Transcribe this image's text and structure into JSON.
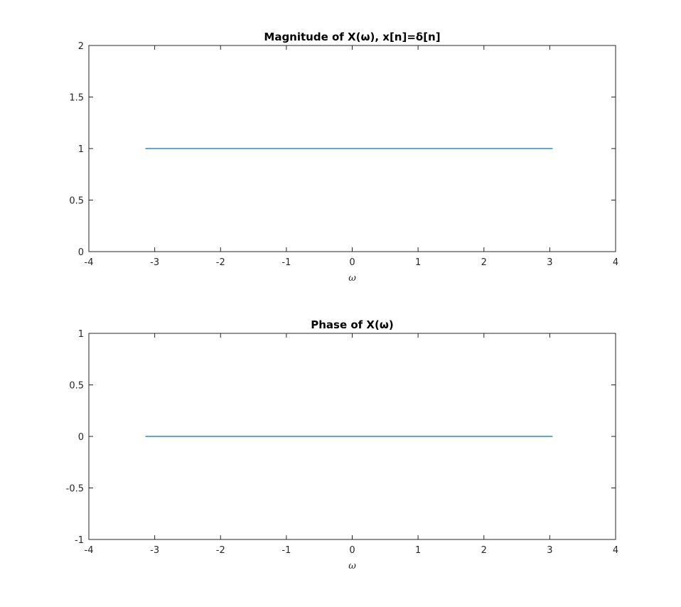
{
  "chart_data": [
    {
      "type": "line",
      "title": "Magnitude of X(ω), x[n]=δ[n]",
      "xlabel": "ω",
      "ylabel": "",
      "xlim": [
        -4,
        4
      ],
      "ylim": [
        0,
        2
      ],
      "xticks": [
        -4,
        -3,
        -2,
        -1,
        0,
        1,
        2,
        3,
        4
      ],
      "yticks": [
        0,
        0.5,
        1,
        1.5,
        2
      ],
      "xtick_labels": [
        "-4",
        "-3",
        "-2",
        "-1",
        "0",
        "1",
        "2",
        "3",
        "4"
      ],
      "ytick_labels": [
        "0",
        "0.5",
        "1",
        "1.5",
        "2"
      ],
      "grid": false,
      "series": [
        {
          "x": [
            -3.1416,
            3.0434
          ],
          "y": [
            1,
            1
          ],
          "color": "#0072bd"
        }
      ]
    },
    {
      "type": "line",
      "title": "Phase of X(ω)",
      "xlabel": "ω",
      "ylabel": "",
      "xlim": [
        -4,
        4
      ],
      "ylim": [
        -1,
        1
      ],
      "xticks": [
        -4,
        -3,
        -2,
        -1,
        0,
        1,
        2,
        3,
        4
      ],
      "yticks": [
        -1,
        -0.5,
        0,
        0.5,
        1
      ],
      "xtick_labels": [
        "-4",
        "-3",
        "-2",
        "-1",
        "0",
        "1",
        "2",
        "3",
        "4"
      ],
      "ytick_labels": [
        "-1",
        "-0.5",
        "0",
        "0.5",
        "1"
      ],
      "grid": false,
      "series": [
        {
          "x": [
            -3.1416,
            3.0434
          ],
          "y": [
            0,
            0
          ],
          "color": "#0072bd"
        }
      ]
    }
  ]
}
